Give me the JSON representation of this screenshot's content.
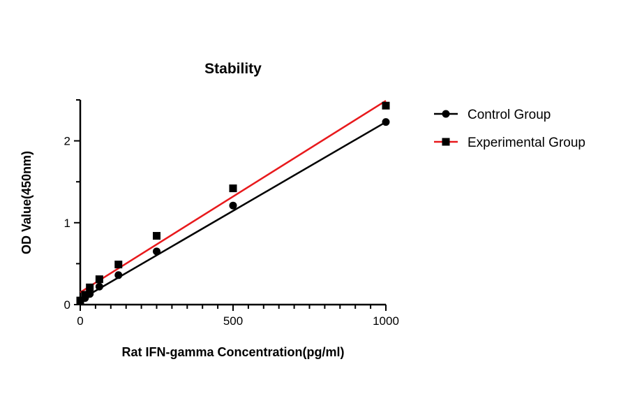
{
  "chart_data": {
    "type": "scatter",
    "title": "Stability",
    "xlabel": "Rat IFN-gamma Concentration(pg/ml)",
    "ylabel": "OD Value(450nm)",
    "xlim": [
      0,
      1000
    ],
    "ylim": [
      0,
      2.5
    ],
    "x_ticks": [
      0,
      500,
      1000
    ],
    "x_minor_step": 50,
    "y_ticks": [
      0,
      1,
      2
    ],
    "y_minor_step": 0.5,
    "grid": false,
    "legend_position": "right",
    "x": [
      0,
      15.6,
      31.25,
      62.5,
      125,
      250,
      500,
      1000
    ],
    "series": [
      {
        "name": "Control Group",
        "color": "#000000",
        "marker": "circle",
        "line_color": "#000000",
        "values": [
          0.04,
          0.08,
          0.13,
          0.22,
          0.36,
          0.65,
          1.21,
          2.23
        ],
        "fit": {
          "intercept": 0.06,
          "slope": 0.00217
        }
      },
      {
        "name": "Experimental Group",
        "color": "#000000",
        "marker": "square",
        "line_color": "#e8191c",
        "values": [
          0.05,
          0.12,
          0.21,
          0.31,
          0.49,
          0.84,
          1.42,
          2.43
        ],
        "fit": {
          "intercept": 0.15,
          "slope": 0.00234
        }
      }
    ]
  }
}
